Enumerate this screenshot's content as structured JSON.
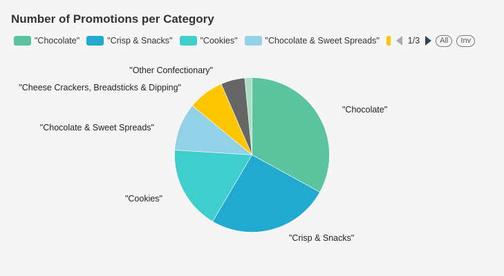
{
  "chart_data": {
    "type": "pie",
    "title": "Number of Promotions per Category",
    "slices": [
      {
        "name": "\"Chocolate\"",
        "value": 33,
        "color": "#5bc49f"
      },
      {
        "name": "\"Crisp & Snacks\"",
        "value": 25.5,
        "color": "#21a9cf"
      },
      {
        "name": "\"Cookies\"",
        "value": 17.5,
        "color": "#3ecfcd"
      },
      {
        "name": "\"Chocolate & Sweet Spreads\"",
        "value": 10,
        "color": "#93d2e6"
      },
      {
        "name": "\"Cheese Crackers, Breadsticks & Dipping\"",
        "value": 7.5,
        "color": "#fec501"
      },
      {
        "name": "\"Other Confectionary\"",
        "value": 5,
        "color": "#666666"
      },
      {
        "name": "",
        "value": 1.5,
        "color": "#a9dfc4"
      }
    ]
  },
  "legend": {
    "visible_items": [
      "\"Chocolate\"",
      "\"Crisp & Snacks\"",
      "\"Cookies\"",
      "\"Chocolate & Sweet Spreads\""
    ],
    "page": "1/3",
    "all_label": "All",
    "inv_label": "Inv"
  }
}
